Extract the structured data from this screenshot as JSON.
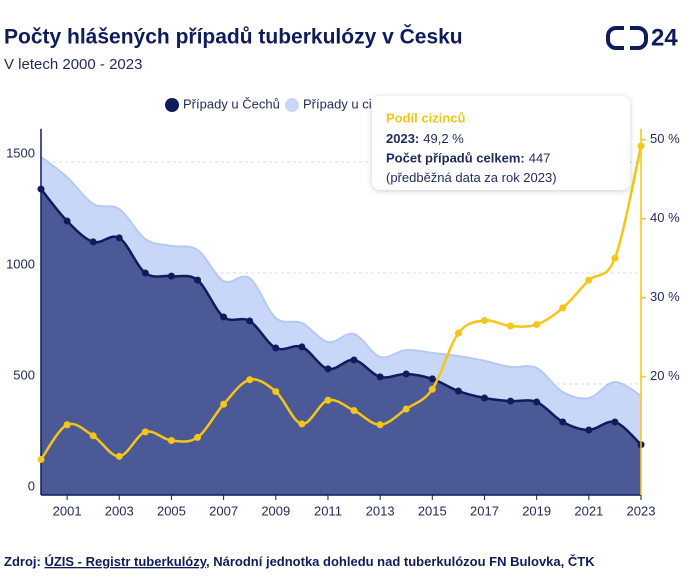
{
  "chart_data": {
    "type": "stacked-area-line",
    "title": "Počty hlášených případů tuberkulózy v Česku",
    "subtitle": "V letech 2000 - 2023",
    "logo": "24",
    "x": [
      2000,
      2001,
      2002,
      2003,
      2004,
      2005,
      2006,
      2007,
      2008,
      2009,
      2010,
      2011,
      2012,
      2013,
      2014,
      2015,
      2016,
      2017,
      2018,
      2019,
      2020,
      2021,
      2022,
      2023
    ],
    "xlim": [
      2000,
      2023
    ],
    "xticks": [
      2001,
      2003,
      2005,
      2007,
      2009,
      2011,
      2013,
      2015,
      2017,
      2019,
      2021,
      2023
    ],
    "ylim": [
      0,
      1650
    ],
    "yticks": [
      0,
      500,
      1000,
      1500
    ],
    "y2lim": [
      5,
      51.4
    ],
    "y2ticks": [
      {
        "value": 20,
        "label": "20 %"
      },
      {
        "value": 30,
        "label": "30 %"
      },
      {
        "value": 40,
        "label": "40 %"
      },
      {
        "value": 50,
        "label": "50 %"
      }
    ],
    "grid": true,
    "stacked": true,
    "series": [
      {
        "name": "Případy u Čechů",
        "color": "#0f1c5c",
        "fill": "#4b5a97",
        "values": [
          1378,
          1234,
          1140,
          1158,
          1000,
          986,
          968,
          802,
          784,
          662,
          667,
          568,
          608,
          532,
          545,
          523,
          468,
          437,
          423,
          419,
          329,
          293,
          329,
          227
        ]
      },
      {
        "name": "Případy u cizinců",
        "color": "#b6c9f5",
        "fill": "#c8d6f8",
        "values": [
          145,
          198,
          171,
          130,
          153,
          136,
          136,
          162,
          193,
          135,
          108,
          121,
          117,
          90,
          108,
          117,
          158,
          167,
          154,
          153,
          135,
          144,
          180,
          220
        ]
      },
      {
        "name": "Podíl cizinců",
        "color": "#f5c518",
        "axis": "y2",
        "values": [
          9.5,
          13.9,
          12.5,
          9.9,
          13.0,
          11.9,
          12.3,
          16.5,
          19.6,
          18.1,
          14.0,
          17.0,
          15.7,
          13.9,
          15.9,
          18.4,
          25.5,
          27.1,
          26.4,
          26.6,
          28.7,
          32.2,
          35.0,
          49.2
        ]
      }
    ],
    "tooltip": {
      "title": "Podíl cizinců",
      "lines": [
        {
          "label": "2023:",
          "value": "49,2 %"
        },
        {
          "label": "Počet případů celkem:",
          "value": "447"
        },
        {
          "label": "",
          "value": "(předběžná data za rok 2023)"
        }
      ]
    },
    "source": {
      "prefix": "Zdroj:",
      "link": "ÚZIS - Registr tuberkulózy",
      "rest": ", Národní jednotka dohledu nad tuberkulózou FN Bulovka, ČTK"
    }
  }
}
